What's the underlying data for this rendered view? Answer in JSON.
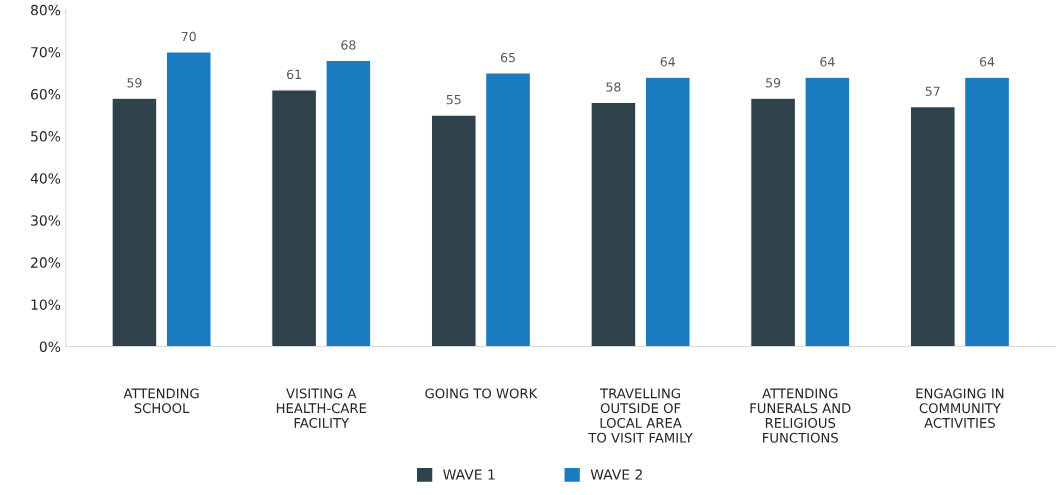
{
  "chart_data": {
    "type": "bar",
    "categories": [
      "ATTENDING\nSCHOOL",
      "VISITING A\nHEALTH-CARE\nFACILITY",
      "GOING TO WORK",
      "TRAVELLING\nOUTSIDE OF\nLOCAL AREA\nTO VISIT FAMILY",
      "ATTENDING\nFUNERALS AND\nRELIGIOUS\nFUNCTIONS",
      "ENGAGING IN\nCOMMUNITY\nACTIVITIES"
    ],
    "series": [
      {
        "name": "WAVE 1",
        "color": "#2f414b",
        "values": [
          59,
          61,
          55,
          58,
          59,
          57
        ]
      },
      {
        "name": "WAVE 2",
        "color": "#1a7bc0",
        "values": [
          70,
          68,
          65,
          64,
          64,
          64
        ]
      }
    ],
    "ylim": [
      0,
      80
    ],
    "yticks": [
      {
        "value": 0,
        "label": "0%"
      },
      {
        "value": 10,
        "label": "10%"
      },
      {
        "value": 20,
        "label": "20%"
      },
      {
        "value": 30,
        "label": "30%"
      },
      {
        "value": 40,
        "label": "40%"
      },
      {
        "value": 50,
        "label": "50%"
      },
      {
        "value": 60,
        "label": "60%"
      },
      {
        "value": 70,
        "label": "70%"
      },
      {
        "value": 80,
        "label": "80%"
      }
    ],
    "data_labels": true,
    "grid": false,
    "legend": "bottom"
  }
}
